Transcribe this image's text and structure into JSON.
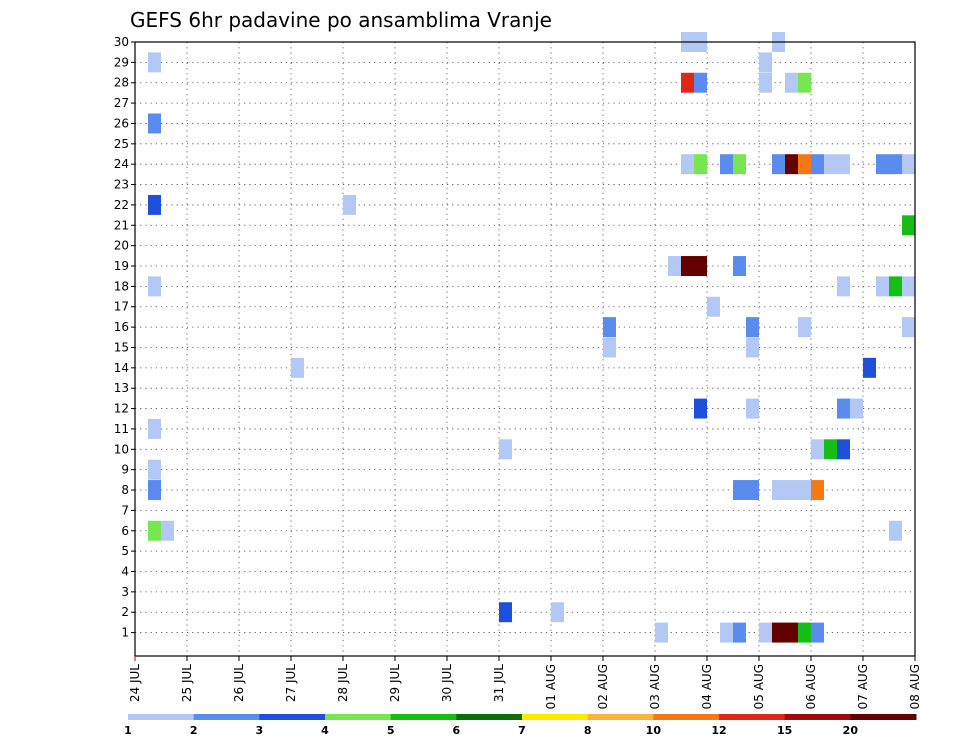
{
  "chart_data": {
    "type": "heatmap",
    "title": "GEFS 6hr padavine po ansamblima Vranje",
    "xlabel": "",
    "ylabel": "",
    "x_tick_labels": [
      "24 JUL",
      "25 JUL",
      "26 JUL",
      "27 JUL",
      "28 JUL",
      "29 JUL",
      "30 JUL",
      "31 JUL",
      "01 AUG",
      "02 AUG",
      "03 AUG",
      "04 AUG",
      "05 AUG",
      "06 AUG",
      "07 AUG",
      "08 AUG"
    ],
    "y_ticks": [
      1,
      2,
      3,
      4,
      5,
      6,
      7,
      8,
      9,
      10,
      11,
      12,
      13,
      14,
      15,
      16,
      17,
      18,
      19,
      20,
      21,
      22,
      23,
      24,
      25,
      26,
      27,
      28,
      29,
      30
    ],
    "xlim_days": [
      0,
      15
    ],
    "ylim": [
      0,
      30
    ],
    "grid": true,
    "colorbar": {
      "labels": [
        "1",
        "2",
        "3",
        "4",
        "5",
        "6",
        "7",
        "8",
        "10",
        "12",
        "15",
        "20"
      ],
      "colors": [
        "#b4c8f5",
        "#5a8cf0",
        "#1e50dc",
        "#78e650",
        "#14be14",
        "#0a6e0a",
        "#ffeb00",
        "#fab43c",
        "#f57814",
        "#dc2814",
        "#a00a0a",
        "#640000"
      ]
    },
    "cells": [
      {
        "d": 0.25,
        "m": 29,
        "v": 1
      },
      {
        "d": 0.25,
        "m": 26,
        "v": 2
      },
      {
        "d": 0.25,
        "m": 22,
        "v": 3
      },
      {
        "d": 0.25,
        "m": 18,
        "v": 1
      },
      {
        "d": 0.25,
        "m": 11,
        "v": 1
      },
      {
        "d": 0.25,
        "m": 9,
        "v": 1
      },
      {
        "d": 0.25,
        "m": 8,
        "v": 2
      },
      {
        "d": 0.25,
        "m": 6,
        "v": 4
      },
      {
        "d": 0.5,
        "m": 6,
        "v": 1
      },
      {
        "d": 3.0,
        "m": 14,
        "v": 1
      },
      {
        "d": 4.0,
        "m": 22,
        "v": 1
      },
      {
        "d": 7.0,
        "m": 10,
        "v": 1
      },
      {
        "d": 7.0,
        "m": 2,
        "v": 3
      },
      {
        "d": 8.0,
        "m": 2,
        "v": 1
      },
      {
        "d": 9.0,
        "m": 16,
        "v": 2
      },
      {
        "d": 9.0,
        "m": 15,
        "v": 1
      },
      {
        "d": 10.0,
        "m": 1,
        "v": 1
      },
      {
        "d": 10.25,
        "m": 19,
        "v": 1
      },
      {
        "d": 10.5,
        "m": 30,
        "v": 1
      },
      {
        "d": 10.75,
        "m": 30,
        "v": 1
      },
      {
        "d": 10.5,
        "m": 28,
        "v": 12
      },
      {
        "d": 10.75,
        "m": 28,
        "v": 2
      },
      {
        "d": 10.5,
        "m": 24,
        "v": 1
      },
      {
        "d": 10.75,
        "m": 24,
        "v": 4
      },
      {
        "d": 10.5,
        "m": 19,
        "v": 20
      },
      {
        "d": 10.75,
        "m": 19,
        "v": 20
      },
      {
        "d": 10.75,
        "m": 12,
        "v": 3
      },
      {
        "d": 11.0,
        "m": 17,
        "v": 1
      },
      {
        "d": 11.25,
        "m": 24,
        "v": 2
      },
      {
        "d": 11.5,
        "m": 24,
        "v": 4
      },
      {
        "d": 11.25,
        "m": 1,
        "v": 1
      },
      {
        "d": 11.5,
        "m": 1,
        "v": 2
      },
      {
        "d": 11.5,
        "m": 19,
        "v": 2
      },
      {
        "d": 11.5,
        "m": 8,
        "v": 2
      },
      {
        "d": 11.75,
        "m": 8,
        "v": 2
      },
      {
        "d": 11.75,
        "m": 16,
        "v": 2
      },
      {
        "d": 11.75,
        "m": 15,
        "v": 1
      },
      {
        "d": 11.75,
        "m": 12,
        "v": 1
      },
      {
        "d": 12.0,
        "m": 29,
        "v": 1
      },
      {
        "d": 12.0,
        "m": 28,
        "v": 1
      },
      {
        "d": 12.0,
        "m": 1,
        "v": 1
      },
      {
        "d": 12.25,
        "m": 30,
        "v": 1
      },
      {
        "d": 12.25,
        "m": 24,
        "v": 2
      },
      {
        "d": 12.25,
        "m": 8,
        "v": 1
      },
      {
        "d": 12.5,
        "m": 8,
        "v": 1
      },
      {
        "d": 12.75,
        "m": 8,
        "v": 1
      },
      {
        "d": 13.0,
        "m": 8,
        "v": 10
      },
      {
        "d": 12.25,
        "m": 1,
        "v": 20
      },
      {
        "d": 12.5,
        "m": 1,
        "v": 20
      },
      {
        "d": 12.75,
        "m": 1,
        "v": 5
      },
      {
        "d": 13.0,
        "m": 1,
        "v": 2
      },
      {
        "d": 12.5,
        "m": 28,
        "v": 1
      },
      {
        "d": 12.75,
        "m": 28,
        "v": 4
      },
      {
        "d": 12.5,
        "m": 24,
        "v": 20
      },
      {
        "d": 12.75,
        "m": 24,
        "v": 10
      },
      {
        "d": 13.0,
        "m": 24,
        "v": 2
      },
      {
        "d": 13.25,
        "m": 24,
        "v": 1
      },
      {
        "d": 13.5,
        "m": 24,
        "v": 1
      },
      {
        "d": 12.75,
        "m": 16,
        "v": 1
      },
      {
        "d": 13.0,
        "m": 10,
        "v": 1
      },
      {
        "d": 13.25,
        "m": 10,
        "v": 5
      },
      {
        "d": 13.5,
        "m": 10,
        "v": 3
      },
      {
        "d": 13.5,
        "m": 18,
        "v": 1
      },
      {
        "d": 13.5,
        "m": 12,
        "v": 2
      },
      {
        "d": 13.75,
        "m": 12,
        "v": 1
      },
      {
        "d": 14.0,
        "m": 14,
        "v": 3
      },
      {
        "d": 14.25,
        "m": 24,
        "v": 2
      },
      {
        "d": 14.5,
        "m": 24,
        "v": 2
      },
      {
        "d": 14.75,
        "m": 24,
        "v": 1
      },
      {
        "d": 14.25,
        "m": 18,
        "v": 1
      },
      {
        "d": 14.5,
        "m": 18,
        "v": 5
      },
      {
        "d": 14.75,
        "m": 18,
        "v": 1
      },
      {
        "d": 14.75,
        "m": 21,
        "v": 5
      },
      {
        "d": 14.75,
        "m": 16,
        "v": 1
      },
      {
        "d": 14.5,
        "m": 6,
        "v": 1
      }
    ]
  }
}
